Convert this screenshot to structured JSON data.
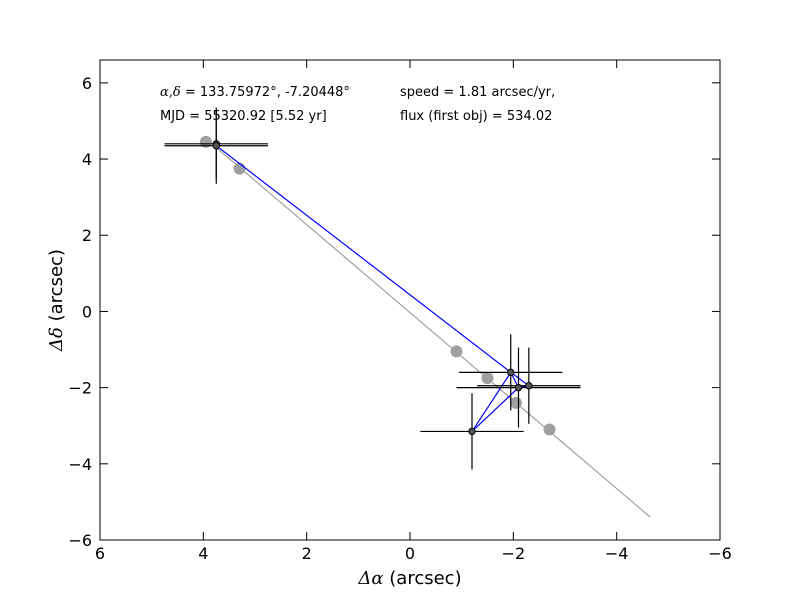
{
  "chart_data": {
    "type": "scatter",
    "xlabel_symbol": "Δα",
    "xlabel_unit": " (arcsec)",
    "ylabel_symbol": "Δδ",
    "ylabel_unit": " (arcsec)",
    "xlim": [
      6,
      -6
    ],
    "ylim": [
      -6,
      6.6
    ],
    "x_ticks": [
      6,
      4,
      2,
      0,
      -2,
      -4,
      -6
    ],
    "x_tick_labels": [
      "6",
      "4",
      "2",
      "0",
      "−2",
      "−4",
      "−6"
    ],
    "y_ticks": [
      -6,
      -4,
      -2,
      0,
      2,
      4,
      6
    ],
    "y_tick_labels": [
      "−6",
      "−4",
      "−2",
      "0",
      "2",
      "4",
      "6"
    ],
    "grid": false,
    "annotations": {
      "coords_symbol": "α,δ",
      "coords_text": " = 133.75972°, -7.20448°",
      "mjd_text": "MJD = 55320.92 [5.52 yr]",
      "speed_text": "speed = 1.81 arcsec/yr,",
      "flux_text": "flux (first obj) = 534.02"
    },
    "series": [
      {
        "role": "model-track",
        "color": "#a0a0a0",
        "line": {
          "x": [
            3.75,
            -4.65
          ],
          "y": [
            4.3,
            -5.4
          ]
        },
        "points": {
          "x": [
            3.95,
            3.3,
            -0.9,
            -1.5,
            -2.05,
            -2.7
          ],
          "y": [
            4.45,
            3.75,
            -1.05,
            -1.75,
            -2.4,
            -3.1
          ]
        }
      },
      {
        "role": "measured",
        "color": "#0000ff",
        "path": {
          "x": [
            3.75,
            3.75,
            -1.95,
            -1.2,
            -2.1,
            -1.95,
            -2.3,
            -2.1,
            -1.95
          ],
          "y": [
            4.4,
            4.35,
            -1.6,
            -3.15,
            -2.0,
            -1.6,
            -1.95,
            -2.0,
            -1.6
          ]
        },
        "points": [
          {
            "x": 3.75,
            "y": 4.4,
            "xerr": 1.0,
            "yerr": 0.9
          },
          {
            "x": 3.75,
            "y": 4.35,
            "xerr": 1.0,
            "yerr": 1.0
          },
          {
            "x": -1.95,
            "y": -1.6,
            "xerr": 1.0,
            "yerr": 1.0
          },
          {
            "x": -1.2,
            "y": -3.15,
            "xerr": 1.0,
            "yerr": 1.0
          },
          {
            "x": -2.1,
            "y": -2.0,
            "xerr": 1.2,
            "yerr": 1.05
          },
          {
            "x": -2.3,
            "y": -1.95,
            "xerr": 1.0,
            "yerr": 1.0
          }
        ]
      }
    ]
  }
}
